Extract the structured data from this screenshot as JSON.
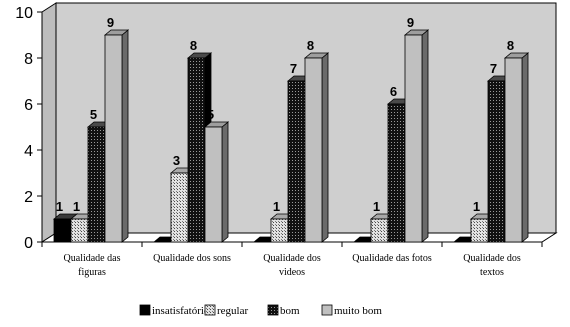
{
  "chart_data": {
    "type": "bar",
    "title": "",
    "xlabel": "",
    "ylabel": "",
    "ylim": [
      0,
      10
    ],
    "yticks": [
      "0",
      "2",
      "4",
      "6",
      "8",
      "10"
    ],
    "categories": [
      [
        "Qualidade das",
        "figuras"
      ],
      [
        "Qualidade dos sons"
      ],
      [
        "Qualidade dos",
        "videos"
      ],
      [
        "Qualidade das fotos"
      ],
      [
        "Qualidade dos",
        "textos"
      ]
    ],
    "series": [
      {
        "name": "insatisfatório",
        "values": [
          1,
          0,
          0,
          0,
          0
        ],
        "labels": [
          "1",
          "",
          "",
          "",
          ""
        ]
      },
      {
        "name": "regular",
        "values": [
          1,
          3,
          1,
          1,
          1
        ],
        "labels": [
          "1",
          "3",
          "1",
          "1",
          "1"
        ]
      },
      {
        "name": "bom",
        "values": [
          5,
          8,
          7,
          6,
          7
        ],
        "labels": [
          "5",
          "8",
          "7",
          "6",
          "7"
        ]
      },
      {
        "name": "muito bom",
        "values": [
          9,
          5,
          8,
          9,
          8
        ],
        "labels": [
          "9",
          "5",
          "8",
          "9",
          "8"
        ]
      }
    ],
    "grid": false,
    "legend_position": "bottom",
    "colors": {
      "insatisfatório": "#000000",
      "regular": "#c8c8c8",
      "bom": "#1a1a1a",
      "muito bom": "#c0c0c0",
      "wall": "#cfcfcf",
      "floor": "#ffffff"
    }
  }
}
